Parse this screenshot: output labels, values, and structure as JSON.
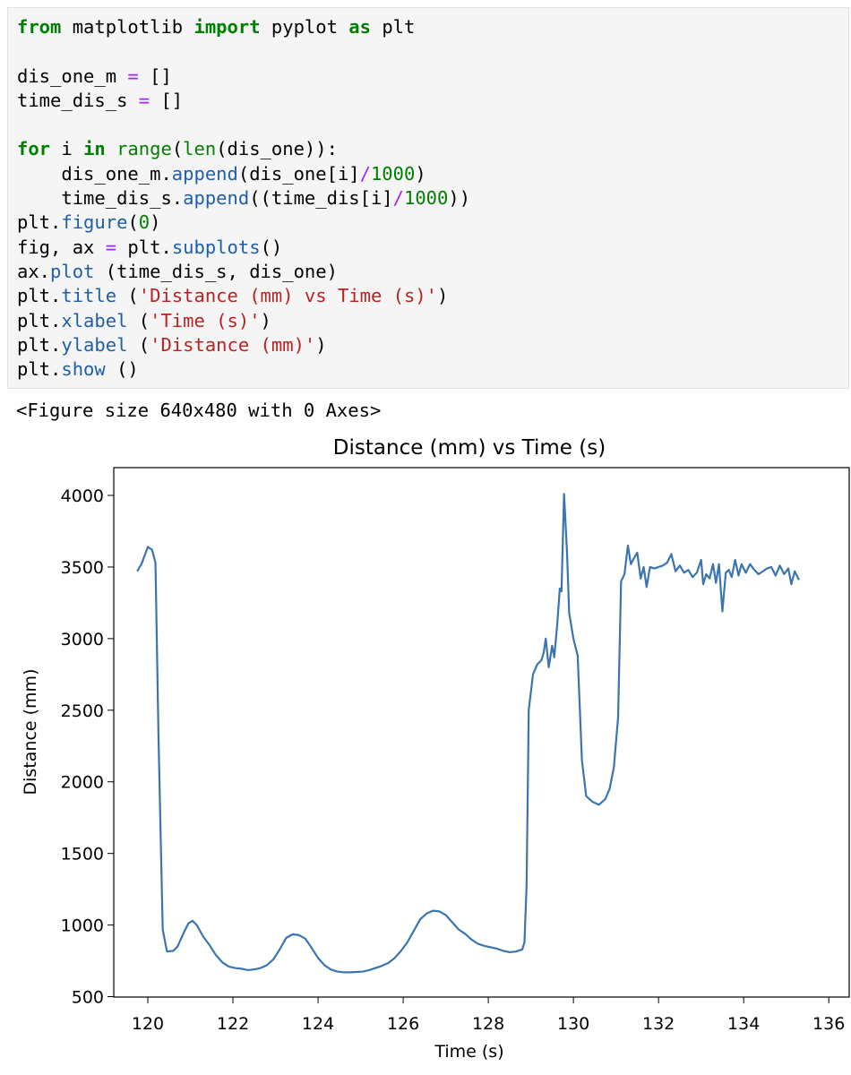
{
  "code": [
    [
      {
        "text": "from",
        "color": "#008000",
        "bold": true
      },
      {
        "text": " matplotlib ",
        "color": "#000000"
      },
      {
        "text": "import",
        "color": "#008000",
        "bold": true
      },
      {
        "text": " pyplot ",
        "color": "#000000"
      },
      {
        "text": "as",
        "color": "#008000",
        "bold": true
      },
      {
        "text": " plt",
        "color": "#000000"
      }
    ],
    [],
    [
      {
        "text": "dis_one_m ",
        "color": "#000000"
      },
      {
        "text": "=",
        "color": "#aa22ff"
      },
      {
        "text": " []",
        "color": "#000000"
      }
    ],
    [
      {
        "text": "time_dis_s ",
        "color": "#000000"
      },
      {
        "text": "=",
        "color": "#aa22ff"
      },
      {
        "text": " []",
        "color": "#000000"
      }
    ],
    [],
    [
      {
        "text": "for",
        "color": "#008000",
        "bold": true
      },
      {
        "text": " i ",
        "color": "#000000"
      },
      {
        "text": "in",
        "color": "#008000",
        "bold": true
      },
      {
        "text": " ",
        "color": "#000000"
      },
      {
        "text": "range",
        "color": "#008000"
      },
      {
        "text": "(",
        "color": "#000000"
      },
      {
        "text": "len",
        "color": "#008000"
      },
      {
        "text": "(dis_one)):",
        "color": "#000000"
      }
    ],
    [
      {
        "text": "    dis_one_m.",
        "color": "#000000"
      },
      {
        "text": "append",
        "color": "#1f5fa8"
      },
      {
        "text": "(dis_one[i]",
        "color": "#000000"
      },
      {
        "text": "/",
        "color": "#aa22ff"
      },
      {
        "text": "1000",
        "color": "#008000"
      },
      {
        "text": ")",
        "color": "#000000"
      }
    ],
    [
      {
        "text": "    time_dis_s.",
        "color": "#000000"
      },
      {
        "text": "append",
        "color": "#1f5fa8"
      },
      {
        "text": "((time_dis[i]",
        "color": "#000000"
      },
      {
        "text": "/",
        "color": "#aa22ff"
      },
      {
        "text": "1000",
        "color": "#008000"
      },
      {
        "text": "))",
        "color": "#000000"
      }
    ],
    [
      {
        "text": "plt.",
        "color": "#000000"
      },
      {
        "text": "figure",
        "color": "#1f5fa8"
      },
      {
        "text": "(",
        "color": "#000000"
      },
      {
        "text": "0",
        "color": "#008000"
      },
      {
        "text": ")",
        "color": "#000000"
      }
    ],
    [
      {
        "text": "fig, ax ",
        "color": "#000000"
      },
      {
        "text": "=",
        "color": "#aa22ff"
      },
      {
        "text": " plt.",
        "color": "#000000"
      },
      {
        "text": "subplots",
        "color": "#1f5fa8"
      },
      {
        "text": "()",
        "color": "#000000"
      }
    ],
    [
      {
        "text": "ax.",
        "color": "#000000"
      },
      {
        "text": "plot",
        "color": "#1f5fa8"
      },
      {
        "text": " (time_dis_s, dis_one)",
        "color": "#000000"
      }
    ],
    [
      {
        "text": "plt.",
        "color": "#000000"
      },
      {
        "text": "title",
        "color": "#1f5fa8"
      },
      {
        "text": " (",
        "color": "#000000"
      },
      {
        "text": "'Distance (mm) vs Time (s)'",
        "color": "#ba2121"
      },
      {
        "text": ")",
        "color": "#000000"
      }
    ],
    [
      {
        "text": "plt.",
        "color": "#000000"
      },
      {
        "text": "xlabel",
        "color": "#1f5fa8"
      },
      {
        "text": " (",
        "color": "#000000"
      },
      {
        "text": "'Time (s)'",
        "color": "#ba2121"
      },
      {
        "text": ")",
        "color": "#000000"
      }
    ],
    [
      {
        "text": "plt.",
        "color": "#000000"
      },
      {
        "text": "ylabel",
        "color": "#1f5fa8"
      },
      {
        "text": " (",
        "color": "#000000"
      },
      {
        "text": "'Distance (mm)'",
        "color": "#ba2121"
      },
      {
        "text": ")",
        "color": "#000000"
      }
    ],
    [
      {
        "text": "plt.",
        "color": "#000000"
      },
      {
        "text": "show",
        "color": "#1f5fa8"
      },
      {
        "text": " ()",
        "color": "#000000"
      }
    ]
  ],
  "output": "<Figure size 640x480 with 0 Axes>",
  "chart_data": {
    "type": "line",
    "title": "Distance (mm) vs Time (s)",
    "x_label": "Time (s)",
    "y_label": "Distance (mm)",
    "xlim": [
      119.2,
      136.48
    ],
    "ylim": [
      497,
      4194
    ],
    "xticks": [
      120,
      122,
      124,
      126,
      128,
      130,
      132,
      134,
      136
    ],
    "yticks": [
      500,
      1000,
      1500,
      2000,
      2500,
      3000,
      3500,
      4000
    ],
    "x": [
      119.75,
      119.85,
      119.95,
      120.0,
      120.1,
      120.18,
      120.25,
      120.35,
      120.45,
      120.6,
      120.7,
      120.85,
      120.95,
      121.05,
      121.15,
      121.3,
      121.45,
      121.6,
      121.75,
      121.9,
      122.05,
      122.2,
      122.35,
      122.5,
      122.65,
      122.8,
      122.95,
      123.1,
      123.25,
      123.4,
      123.55,
      123.7,
      123.85,
      124.0,
      124.15,
      124.3,
      124.45,
      124.6,
      124.75,
      124.9,
      125.05,
      125.2,
      125.35,
      125.5,
      125.65,
      125.8,
      125.95,
      126.1,
      126.25,
      126.4,
      126.55,
      126.7,
      126.85,
      127.0,
      127.15,
      127.3,
      127.45,
      127.6,
      127.75,
      127.9,
      128.05,
      128.2,
      128.35,
      128.5,
      128.65,
      128.8,
      128.85,
      128.9,
      128.95,
      129.05,
      129.15,
      129.25,
      129.3,
      129.35,
      129.42,
      129.5,
      129.55,
      129.62,
      129.68,
      129.72,
      129.78,
      129.85,
      129.9,
      130.0,
      130.1,
      130.2,
      130.3,
      130.45,
      130.6,
      130.75,
      130.85,
      130.95,
      131.05,
      131.12,
      131.2,
      131.28,
      131.35,
      131.42,
      131.5,
      131.58,
      131.65,
      131.72,
      131.8,
      131.9,
      132.0,
      132.1,
      132.2,
      132.3,
      132.4,
      132.5,
      132.6,
      132.7,
      132.8,
      132.9,
      133.0,
      133.05,
      133.12,
      133.2,
      133.28,
      133.35,
      133.42,
      133.5,
      133.58,
      133.65,
      133.72,
      133.8,
      133.88,
      133.95,
      134.05,
      134.15,
      134.25,
      134.35,
      134.45,
      134.55,
      134.65,
      134.75,
      134.85,
      134.95,
      135.05,
      135.12,
      135.2,
      135.3
    ],
    "series": [
      {
        "color": "#3b75af",
        "values": [
          3470,
          3520,
          3600,
          3640,
          3620,
          3530,
          2330,
          970,
          815,
          820,
          850,
          950,
          1010,
          1030,
          1000,
          920,
          860,
          790,
          740,
          710,
          700,
          695,
          685,
          690,
          700,
          720,
          760,
          830,
          910,
          935,
          930,
          905,
          840,
          770,
          720,
          690,
          675,
          670,
          670,
          672,
          675,
          685,
          700,
          715,
          735,
          770,
          820,
          880,
          960,
          1040,
          1080,
          1100,
          1095,
          1070,
          1020,
          970,
          940,
          900,
          870,
          855,
          845,
          835,
          820,
          810,
          815,
          830,
          880,
          1280,
          2500,
          2750,
          2820,
          2850,
          2900,
          3000,
          2800,
          2950,
          2870,
          3100,
          3350,
          3330,
          4010,
          3600,
          3180,
          3000,
          2880,
          2150,
          1900,
          1860,
          1840,
          1880,
          1950,
          2100,
          2450,
          3400,
          3450,
          3650,
          3520,
          3560,
          3600,
          3420,
          3500,
          3360,
          3500,
          3490,
          3500,
          3510,
          3530,
          3590,
          3470,
          3510,
          3460,
          3480,
          3430,
          3460,
          3550,
          3380,
          3450,
          3420,
          3520,
          3390,
          3520,
          3190,
          3460,
          3480,
          3430,
          3550,
          3440,
          3520,
          3460,
          3520,
          3480,
          3450,
          3470,
          3490,
          3500,
          3440,
          3510,
          3450,
          3490,
          3380,
          3470,
          3410
        ]
      }
    ]
  }
}
